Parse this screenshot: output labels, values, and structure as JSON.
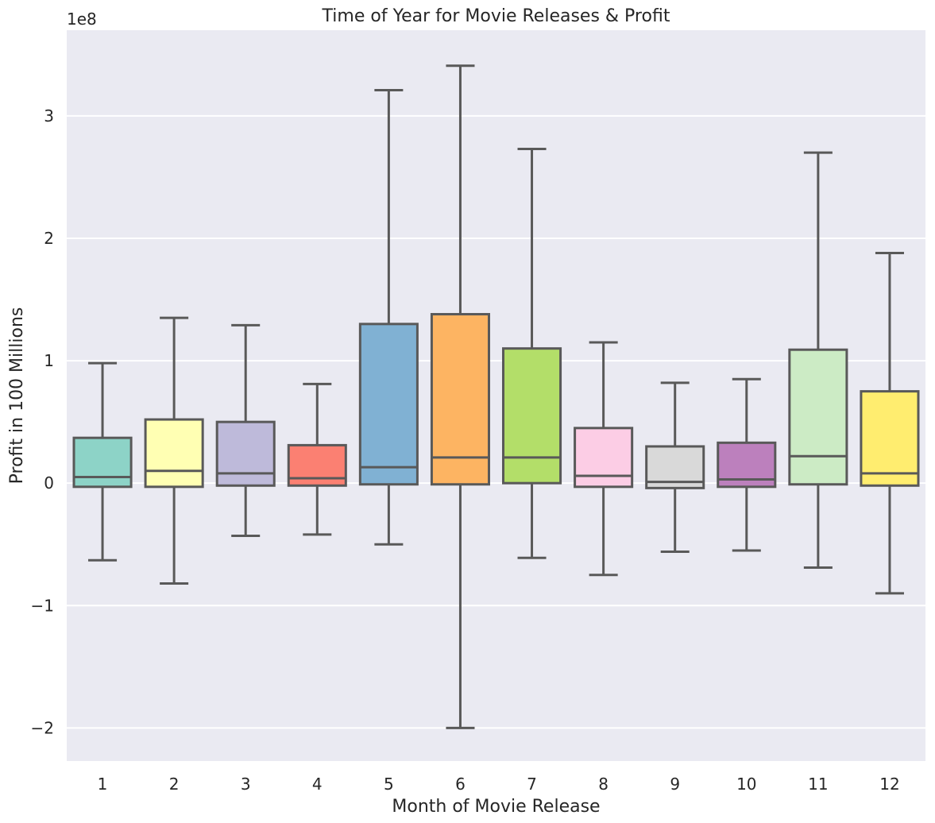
{
  "chart_data": {
    "type": "box",
    "title": "Time of Year for Movie Releases & Profit",
    "xlabel": "Month of Movie Release",
    "ylabel": "Profit in 100 Millions",
    "y_offset_label": "1e8",
    "y_scale_factor": 100000000,
    "ylim": [
      -2.27,
      3.7
    ],
    "yticks": [
      -2,
      -1,
      0,
      1,
      2,
      3
    ],
    "ytick_labels": [
      "−2",
      "−1",
      "0",
      "1",
      "2",
      "3"
    ],
    "grid": true,
    "categories": [
      "1",
      "2",
      "3",
      "4",
      "5",
      "6",
      "7",
      "8",
      "9",
      "10",
      "11",
      "12"
    ],
    "boxes": [
      {
        "category": "1",
        "whisker_low": -0.63,
        "q1": -0.03,
        "median": 0.05,
        "q3": 0.37,
        "whisker_high": 0.98,
        "color": "#8dd3c7"
      },
      {
        "category": "2",
        "whisker_low": -0.82,
        "q1": -0.03,
        "median": 0.1,
        "q3": 0.52,
        "whisker_high": 1.35,
        "color": "#ffffb3"
      },
      {
        "category": "3",
        "whisker_low": -0.43,
        "q1": -0.02,
        "median": 0.08,
        "q3": 0.5,
        "whisker_high": 1.29,
        "color": "#bebada"
      },
      {
        "category": "4",
        "whisker_low": -0.42,
        "q1": -0.02,
        "median": 0.04,
        "q3": 0.31,
        "whisker_high": 0.81,
        "color": "#fb8072"
      },
      {
        "category": "5",
        "whisker_low": -0.5,
        "q1": -0.01,
        "median": 0.13,
        "q3": 1.3,
        "whisker_high": 3.21,
        "color": "#80b1d3"
      },
      {
        "category": "6",
        "whisker_low": -2.0,
        "q1": -0.01,
        "median": 0.21,
        "q3": 1.38,
        "whisker_high": 3.41,
        "color": "#fdb462"
      },
      {
        "category": "7",
        "whisker_low": -0.61,
        "q1": 0.0,
        "median": 0.21,
        "q3": 1.1,
        "whisker_high": 2.73,
        "color": "#b3de69"
      },
      {
        "category": "8",
        "whisker_low": -0.75,
        "q1": -0.03,
        "median": 0.06,
        "q3": 0.45,
        "whisker_high": 1.15,
        "color": "#fccde5"
      },
      {
        "category": "9",
        "whisker_low": -0.56,
        "q1": -0.04,
        "median": 0.01,
        "q3": 0.3,
        "whisker_high": 0.82,
        "color": "#d9d9d9"
      },
      {
        "category": "10",
        "whisker_low": -0.55,
        "q1": -0.03,
        "median": 0.03,
        "q3": 0.33,
        "whisker_high": 0.85,
        "color": "#bc80bd"
      },
      {
        "category": "11",
        "whisker_low": -0.69,
        "q1": -0.01,
        "median": 0.22,
        "q3": 1.09,
        "whisker_high": 2.7,
        "color": "#ccebc5"
      },
      {
        "category": "12",
        "whisker_low": -0.9,
        "q1": -0.02,
        "median": 0.08,
        "q3": 0.75,
        "whisker_high": 1.88,
        "color": "#ffed6f"
      }
    ],
    "colors": {
      "background": "#eaeaf2",
      "grid": "#ffffff",
      "line": "#595959"
    }
  }
}
